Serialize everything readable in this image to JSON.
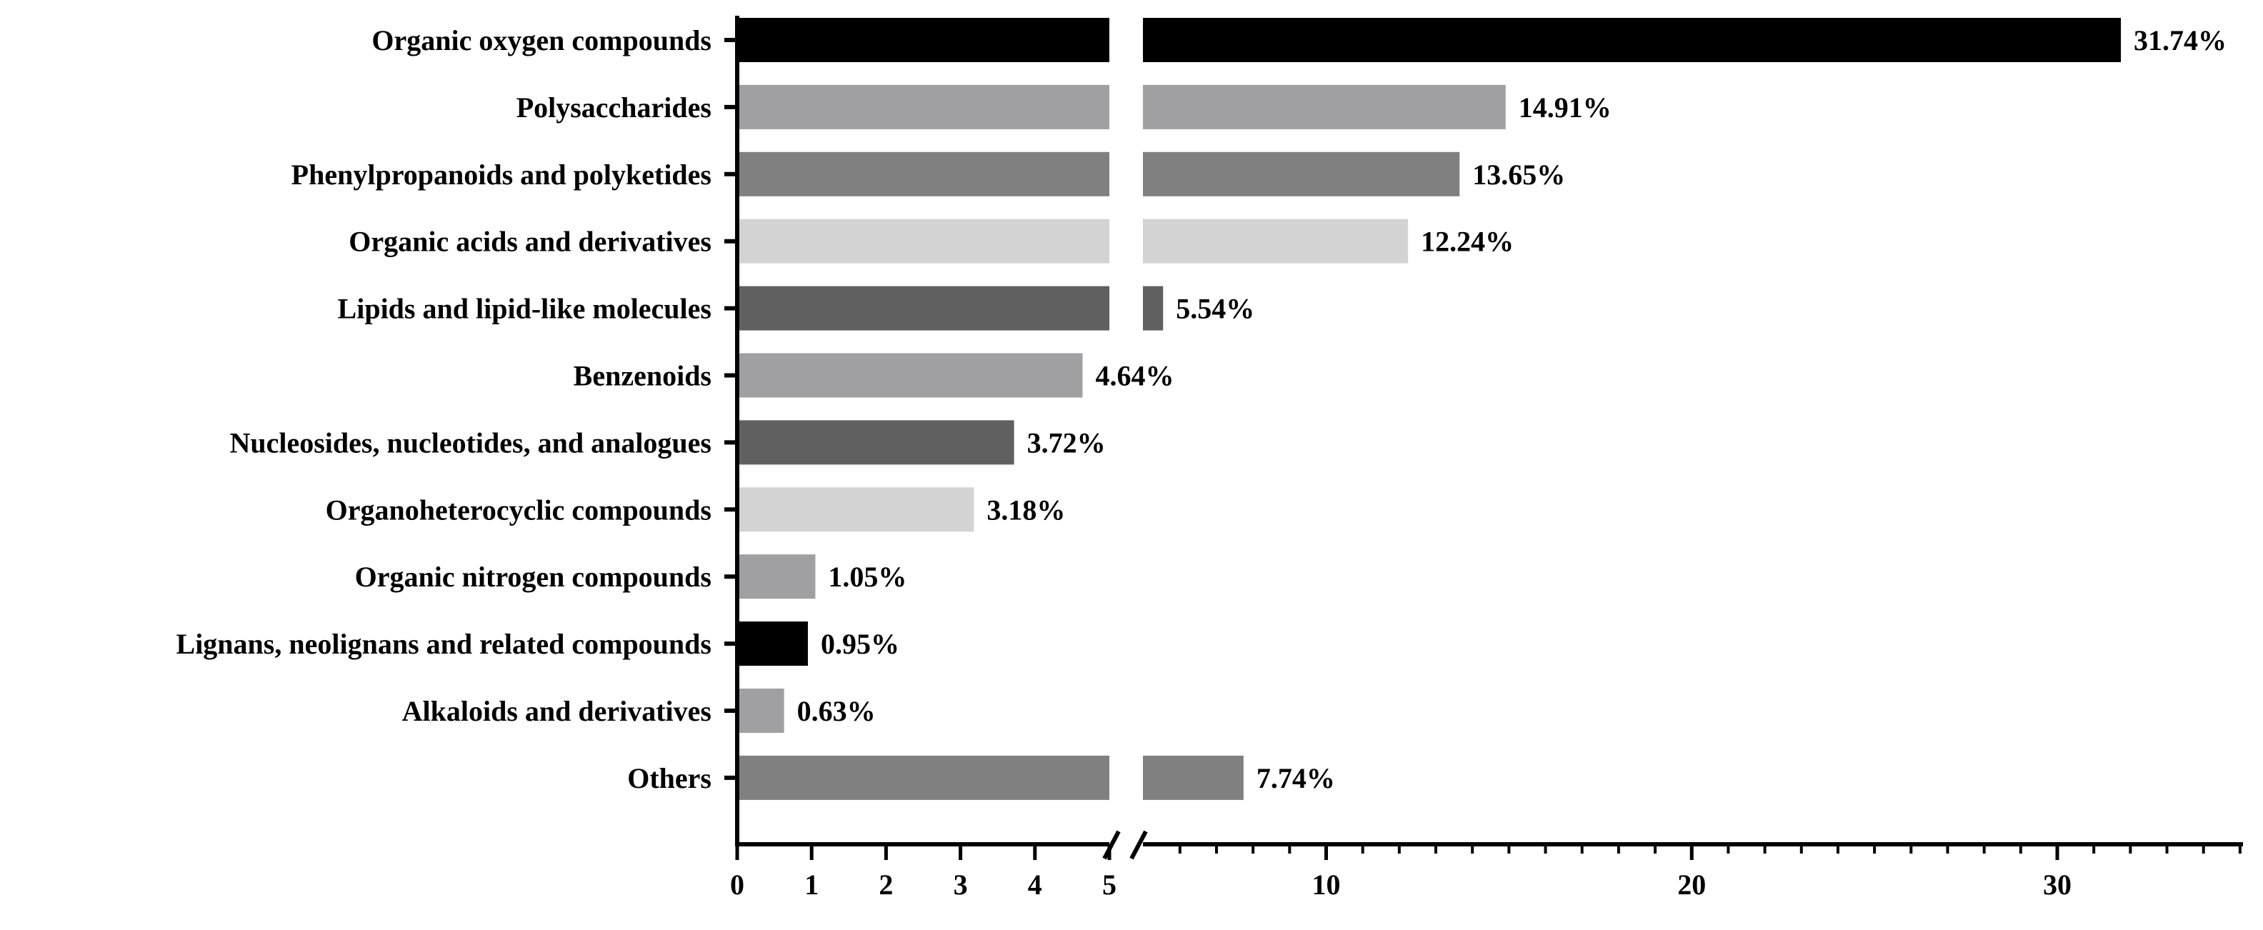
{
  "chart_data": {
    "type": "bar",
    "orientation": "horizontal",
    "title": "",
    "xlabel": "",
    "ylabel": "",
    "value_suffix": "%",
    "axis_break": {
      "from": 5,
      "to": 5.5
    },
    "xlim": [
      0,
      35
    ],
    "segment1_ticks": [
      0,
      1,
      2,
      3,
      4,
      5
    ],
    "segment2_major_ticks": [
      10,
      20,
      30
    ],
    "segment2_minor_step": 1,
    "categories": [
      "Organic oxygen compounds",
      "Polysaccharides",
      "Phenylpropanoids and polyketides",
      "Organic acids and derivatives",
      "Lipids and lipid-like molecules",
      "Benzenoids",
      "Nucleosides, nucleotides, and analogues",
      "Organoheterocyclic compounds",
      "Organic nitrogen compounds",
      "Lignans, neolignans and related compounds",
      "Alkaloids and derivatives",
      "Others"
    ],
    "values": [
      31.74,
      14.91,
      13.65,
      12.24,
      5.54,
      4.64,
      3.72,
      3.18,
      1.05,
      0.95,
      0.63,
      7.74
    ],
    "value_labels": [
      "31.74%",
      "14.91%",
      "13.65%",
      "12.24%",
      "5.54%",
      "4.64%",
      "3.72%",
      "3.18%",
      "1.05%",
      "0.95%",
      "0.63%",
      "7.74%"
    ],
    "bar_colors": [
      "#000000",
      "#a0a0a3",
      "#808080",
      "#d3d3d3",
      "#606060",
      "#a0a0a3",
      "#606060",
      "#d3d3d3",
      "#a0a0a3",
      "#000000",
      "#a0a0a3",
      "#808080"
    ],
    "grid": false,
    "legend": "none"
  }
}
